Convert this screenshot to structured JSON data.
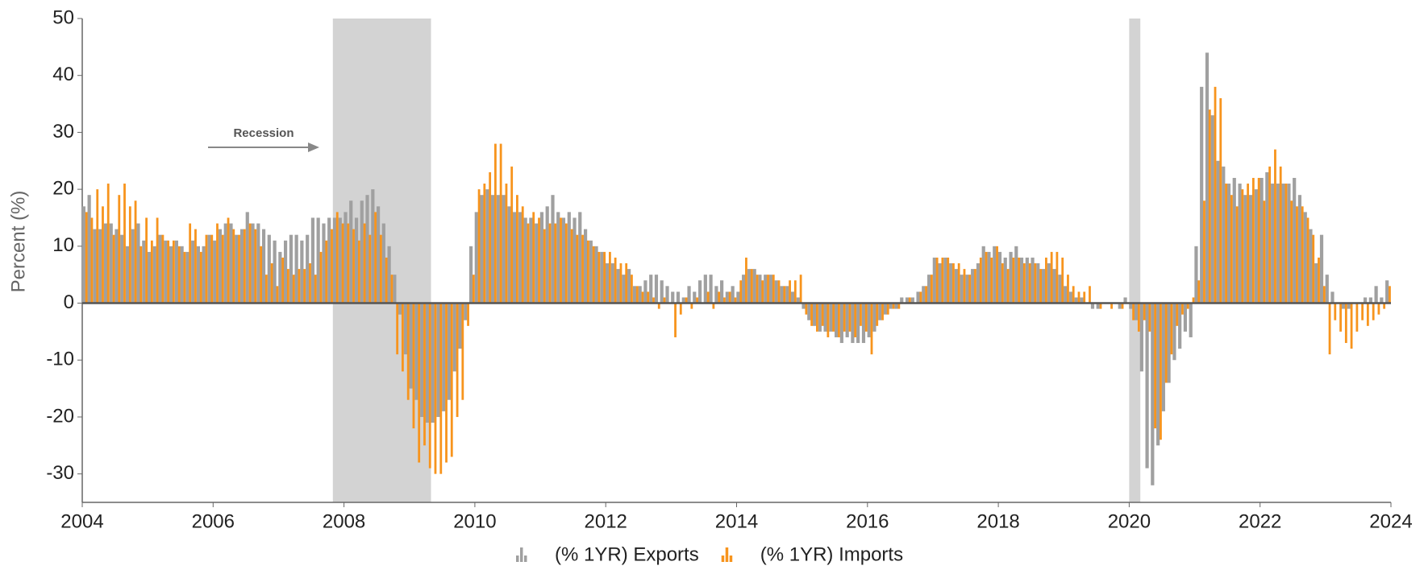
{
  "chart_data": {
    "type": "bar",
    "y_label": "Percent (%)",
    "annotation": "Recession",
    "recessions": [
      [
        2007.83,
        2009.33
      ],
      [
        2020.0,
        2020.17
      ]
    ],
    "xlim": [
      2004,
      2024
    ],
    "xticks": [
      2004,
      2006,
      2008,
      2010,
      2012,
      2014,
      2016,
      2018,
      2020,
      2022,
      2024
    ],
    "ylim": [
      -35,
      50
    ],
    "yticks": [
      -30,
      -20,
      -10,
      0,
      10,
      20,
      30,
      40,
      50
    ],
    "x": [
      2004,
      2004.083,
      2004.167,
      2004.25,
      2004.333,
      2004.417,
      2004.5,
      2004.583,
      2004.667,
      2004.75,
      2004.833,
      2004.917,
      2005,
      2005.083,
      2005.167,
      2005.25,
      2005.333,
      2005.417,
      2005.5,
      2005.583,
      2005.667,
      2005.75,
      2005.833,
      2005.917,
      2006,
      2006.083,
      2006.167,
      2006.25,
      2006.333,
      2006.417,
      2006.5,
      2006.583,
      2006.667,
      2006.75,
      2006.833,
      2006.917,
      2007,
      2007.083,
      2007.167,
      2007.25,
      2007.333,
      2007.417,
      2007.5,
      2007.583,
      2007.667,
      2007.75,
      2007.833,
      2007.917,
      2008,
      2008.083,
      2008.167,
      2008.25,
      2008.333,
      2008.417,
      2008.5,
      2008.583,
      2008.667,
      2008.75,
      2008.833,
      2008.917,
      2009,
      2009.083,
      2009.167,
      2009.25,
      2009.333,
      2009.417,
      2009.5,
      2009.583,
      2009.667,
      2009.75,
      2009.833,
      2009.917,
      2010,
      2010.083,
      2010.167,
      2010.25,
      2010.333,
      2010.417,
      2010.5,
      2010.583,
      2010.667,
      2010.75,
      2010.833,
      2010.917,
      2011,
      2011.083,
      2011.167,
      2011.25,
      2011.333,
      2011.417,
      2011.5,
      2011.583,
      2011.667,
      2011.75,
      2011.833,
      2011.917,
      2012,
      2012.083,
      2012.167,
      2012.25,
      2012.333,
      2012.417,
      2012.5,
      2012.583,
      2012.667,
      2012.75,
      2012.833,
      2012.917,
      2013,
      2013.083,
      2013.167,
      2013.25,
      2013.333,
      2013.417,
      2013.5,
      2013.583,
      2013.667,
      2013.75,
      2013.833,
      2013.917,
      2014,
      2014.083,
      2014.167,
      2014.25,
      2014.333,
      2014.417,
      2014.5,
      2014.583,
      2014.667,
      2014.75,
      2014.833,
      2014.917,
      2015,
      2015.083,
      2015.167,
      2015.25,
      2015.333,
      2015.417,
      2015.5,
      2015.583,
      2015.667,
      2015.75,
      2015.833,
      2015.917,
      2016,
      2016.083,
      2016.167,
      2016.25,
      2016.333,
      2016.417,
      2016.5,
      2016.583,
      2016.667,
      2016.75,
      2016.833,
      2016.917,
      2017,
      2017.083,
      2017.167,
      2017.25,
      2017.333,
      2017.417,
      2017.5,
      2017.583,
      2017.667,
      2017.75,
      2017.833,
      2017.917,
      2018,
      2018.083,
      2018.167,
      2018.25,
      2018.333,
      2018.417,
      2018.5,
      2018.583,
      2018.667,
      2018.75,
      2018.833,
      2018.917,
      2019,
      2019.083,
      2019.167,
      2019.25,
      2019.333,
      2019.417,
      2019.5,
      2019.583,
      2019.667,
      2019.75,
      2019.833,
      2019.917,
      2020,
      2020.083,
      2020.167,
      2020.25,
      2020.333,
      2020.417,
      2020.5,
      2020.583,
      2020.667,
      2020.75,
      2020.833,
      2020.917,
      2021,
      2021.083,
      2021.167,
      2021.25,
      2021.333,
      2021.417,
      2021.5,
      2021.583,
      2021.667,
      2021.75,
      2021.833,
      2021.917,
      2022,
      2022.083,
      2022.167,
      2022.25,
      2022.333,
      2022.417,
      2022.5,
      2022.583,
      2022.667,
      2022.75,
      2022.833,
      2022.917,
      2023,
      2023.083,
      2023.167,
      2023.25,
      2023.333,
      2023.417,
      2023.5,
      2023.583,
      2023.667,
      2023.75,
      2023.833,
      2023.917
    ],
    "series": [
      {
        "name": "(% 1YR) Exports",
        "color": "#a0a0a0",
        "values": [
          17,
          19,
          13,
          13,
          14,
          14,
          13,
          12,
          10,
          13,
          14,
          11,
          9,
          10,
          12,
          11,
          10,
          11,
          10,
          9,
          11,
          10,
          10,
          12,
          11,
          13,
          14,
          14,
          12,
          13,
          16,
          14,
          14,
          13,
          12,
          11,
          9,
          11,
          12,
          12,
          11,
          12,
          15,
          15,
          14,
          15,
          15,
          15,
          16,
          18,
          15,
          18,
          19,
          20,
          17,
          14,
          10,
          5,
          -2,
          -9,
          -15,
          -17,
          -20,
          -21,
          -21,
          -20,
          -19,
          -17,
          -12,
          -8,
          -3,
          10,
          16,
          19,
          20,
          19,
          19,
          19,
          17,
          16,
          16,
          15,
          15,
          14,
          16,
          17,
          19,
          16,
          15,
          16,
          15,
          16,
          13,
          11,
          10,
          9,
          7,
          7,
          6,
          5,
          6,
          3,
          3,
          4,
          5,
          5,
          4,
          3,
          2,
          2,
          1,
          3,
          2,
          4,
          5,
          5,
          3,
          4,
          2,
          3,
          2,
          5,
          6,
          6,
          5,
          5,
          5,
          4,
          3,
          3,
          2,
          1,
          -1,
          -3,
          -4,
          -5,
          -5,
          -5,
          -6,
          -7,
          -6,
          -7,
          -7,
          -7,
          -6,
          -5,
          -3,
          -2,
          -1,
          -1,
          1,
          1,
          1,
          2,
          3,
          5,
          8,
          7,
          8,
          7,
          6,
          5,
          5,
          6,
          7,
          10,
          9,
          10,
          9,
          8,
          9,
          10,
          8,
          8,
          8,
          7,
          6,
          7,
          6,
          5,
          3,
          2,
          1,
          1,
          0,
          -1,
          -1,
          0,
          0,
          0,
          -1,
          1,
          -1,
          -3,
          -12,
          -29,
          -32,
          -25,
          -19,
          -14,
          -10,
          -8,
          -5,
          -6,
          10,
          38,
          44,
          33,
          25,
          24,
          21,
          22,
          21,
          19,
          19,
          20,
          22,
          23,
          21,
          21,
          21,
          21,
          22,
          19,
          16,
          13,
          7,
          12,
          5,
          2,
          0,
          -1,
          -1,
          0,
          0,
          1,
          1,
          3,
          1,
          4
        ]
      },
      {
        "name": "(% 1YR) Imports",
        "color": "#f7941d",
        "values": [
          16,
          15,
          20,
          17,
          21,
          12,
          19,
          21,
          17,
          18,
          10,
          15,
          11,
          15,
          12,
          11,
          11,
          10,
          9,
          14,
          13,
          9,
          12,
          12,
          14,
          12,
          15,
          13,
          12,
          13,
          14,
          13,
          10,
          5,
          7,
          3,
          8,
          6,
          5,
          6,
          6,
          7,
          5,
          9,
          11,
          13,
          16,
          14,
          14,
          13,
          11,
          14,
          12,
          16,
          12,
          8,
          5,
          -9,
          -12,
          -17,
          -22,
          -28,
          -25,
          -29,
          -30,
          -30,
          -28,
          -27,
          -20,
          -17,
          -4,
          5,
          20,
          21,
          23,
          28,
          28,
          21,
          24,
          19,
          17,
          14,
          16,
          15,
          13,
          14,
          14,
          15,
          14,
          13,
          12,
          12,
          11,
          10,
          9,
          9,
          9,
          8,
          7,
          7,
          5,
          3,
          2,
          2,
          1,
          -1,
          1,
          0,
          -6,
          -2,
          1,
          -1,
          1,
          0,
          2,
          -1,
          2,
          1,
          2,
          1,
          4,
          8,
          6,
          5,
          4,
          5,
          5,
          4,
          3,
          4,
          4,
          5,
          -2,
          -4,
          -5,
          -4,
          -6,
          -5,
          -6,
          -5,
          -5,
          -6,
          -4,
          -5,
          -9,
          -4,
          -3,
          -2,
          -1,
          -1,
          0,
          1,
          0,
          2,
          3,
          5,
          8,
          8,
          8,
          7,
          7,
          6,
          5,
          6,
          8,
          9,
          8,
          10,
          7,
          6,
          8,
          8,
          7,
          7,
          7,
          6,
          8,
          9,
          9,
          8,
          5,
          3,
          2,
          2,
          3,
          0,
          -1,
          0,
          -1,
          0,
          -1,
          0,
          -3,
          -5,
          -3,
          -5,
          -22,
          -24,
          -14,
          -9,
          -4,
          -2,
          -1,
          1,
          4,
          18,
          34,
          38,
          36,
          21,
          19,
          17,
          20,
          21,
          22,
          22,
          18,
          24,
          27,
          24,
          21,
          18,
          17,
          17,
          15,
          12,
          8,
          3,
          -9,
          -3,
          -5,
          -7,
          -8,
          -5,
          -3,
          -4,
          -3,
          -2,
          -1,
          3
        ]
      }
    ]
  }
}
